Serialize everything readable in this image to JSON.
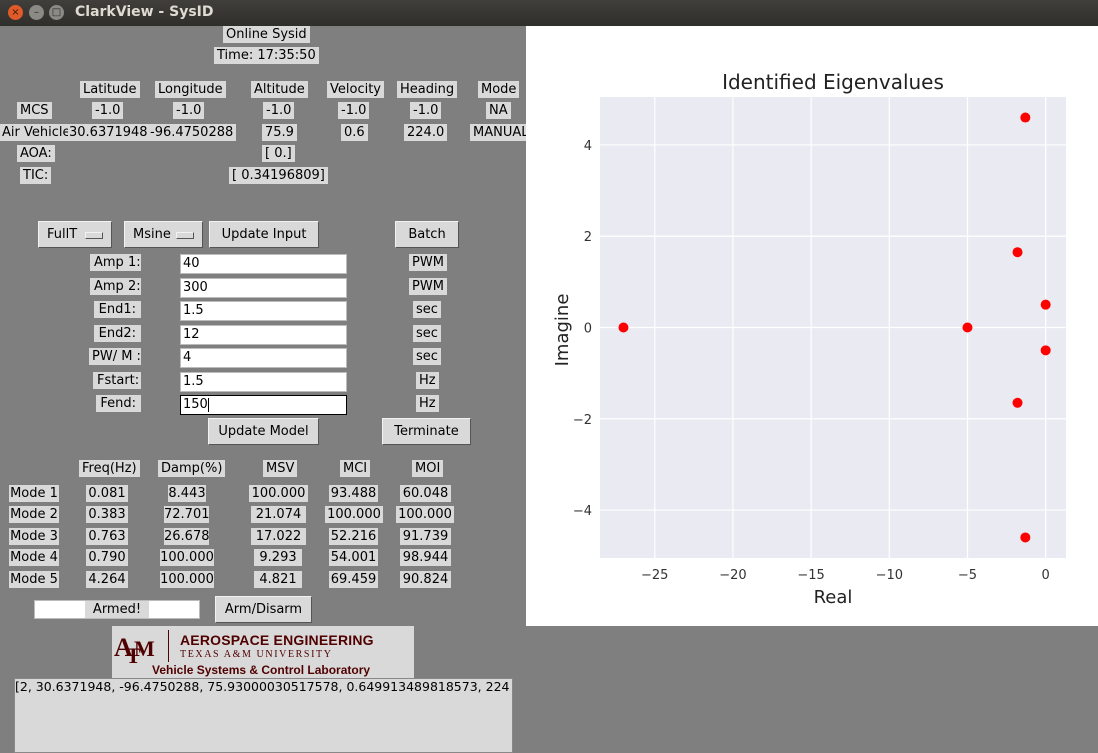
{
  "window": {
    "title": "ClarkView - SysID",
    "close_glyph": "×",
    "min_glyph": "–",
    "max_glyph": "□"
  },
  "header": {
    "mode_label": "Online Sysid",
    "time": "Time: 17:35:50"
  },
  "telemetry": {
    "columns": [
      "Latitude",
      "Longitude",
      "Altitude",
      "Velocity",
      "Heading",
      "Mode"
    ],
    "mcs": {
      "label": "MCS",
      "values": [
        "-1.0",
        "-1.0",
        "-1.0",
        "-1.0",
        "-1.0",
        "NA"
      ]
    },
    "air_vehicle": {
      "label": "Air Vehicle",
      "values": [
        "30.6371948",
        "-96.4750288",
        "75.9",
        "0.6",
        "224.0",
        "MANUAL"
      ]
    },
    "aoa": {
      "label": "AOA:",
      "value": "[ 0.]"
    },
    "tic": {
      "label": "TIC:",
      "value": "[ 0.34196809]"
    }
  },
  "controls": {
    "input_type": "FullT",
    "signal_type": "Msine",
    "update_input": "Update Input",
    "batch": "Batch",
    "update_model": "Update Model",
    "terminate": "Terminate",
    "arm_disarm": "Arm/Disarm",
    "armed_status": "Armed!"
  },
  "params": [
    {
      "label": "Amp 1:",
      "value": "40",
      "unit": "PWM"
    },
    {
      "label": "Amp 2:",
      "value": "300",
      "unit": "PWM"
    },
    {
      "label": "End1:",
      "value": "1.5",
      "unit": "sec"
    },
    {
      "label": "End2:",
      "value": "12",
      "unit": "sec"
    },
    {
      "label": "PW/ M :",
      "value": "4",
      "unit": "sec"
    },
    {
      "label": "Fstart:",
      "value": "1.5",
      "unit": "Hz"
    },
    {
      "label": "Fend:",
      "value": "150",
      "unit": "Hz"
    }
  ],
  "modes": {
    "columns": [
      "Freq(Hz)",
      "Damp(%)",
      "MSV",
      "MCI",
      "MOI"
    ],
    "rows": [
      {
        "label": "Mode 1",
        "values": [
          "0.081",
          "8.443",
          "100.000",
          "93.488",
          "60.048"
        ]
      },
      {
        "label": "Mode 2",
        "values": [
          "0.383",
          "72.701",
          "21.074",
          "100.000",
          "100.000"
        ]
      },
      {
        "label": "Mode 3",
        "values": [
          "0.763",
          "26.678",
          "17.022",
          "52.216",
          "91.739"
        ]
      },
      {
        "label": "Mode 4",
        "values": [
          "0.790",
          "100.000",
          "9.293",
          "54.001",
          "98.944"
        ]
      },
      {
        "label": "Mode 5",
        "values": [
          "4.264",
          "100.000",
          "4.821",
          "69.459",
          "90.824"
        ]
      }
    ]
  },
  "logo": {
    "line1": "AEROSPACE ENGINEERING",
    "line2": "TEXAS A&M UNIVERSITY",
    "line3": "Vehicle Systems & Control Laboratory"
  },
  "console": {
    "text": "[2, 30.6371948, -96.4750288, 75.93000030517578, 0.649913489818573, 224"
  },
  "colors": {
    "panel_bg": "#7f7f7f",
    "widget_bg": "#d9d9d9",
    "plot_bg": "#eaeaf2",
    "point_color": "#ff0000",
    "logo_maroon": "#500000"
  },
  "chart_data": {
    "type": "scatter",
    "title": "Identified Eigenvalues",
    "xlabel": "Real",
    "ylabel": "Imagine",
    "xlim": [
      -28.5,
      1.3
    ],
    "ylim": [
      -5.05,
      5.05
    ],
    "xticks": [
      -25,
      -20,
      -15,
      -10,
      -5,
      0
    ],
    "yticks": [
      -4,
      -2,
      0,
      2,
      4
    ],
    "xtick_labels": [
      "−25",
      "−20",
      "−15",
      "−10",
      "−5",
      "0"
    ],
    "ytick_labels": [
      "−4",
      "−2",
      "0",
      "2",
      "4"
    ],
    "grid": true,
    "series": [
      {
        "x": [
          -1.3,
          -1.8,
          0,
          -27,
          -5,
          0,
          -1.8,
          -1.3
        ],
        "y": [
          4.6,
          1.65,
          0.5,
          0,
          0,
          -0.5,
          -1.65,
          -4.6
        ]
      }
    ]
  }
}
